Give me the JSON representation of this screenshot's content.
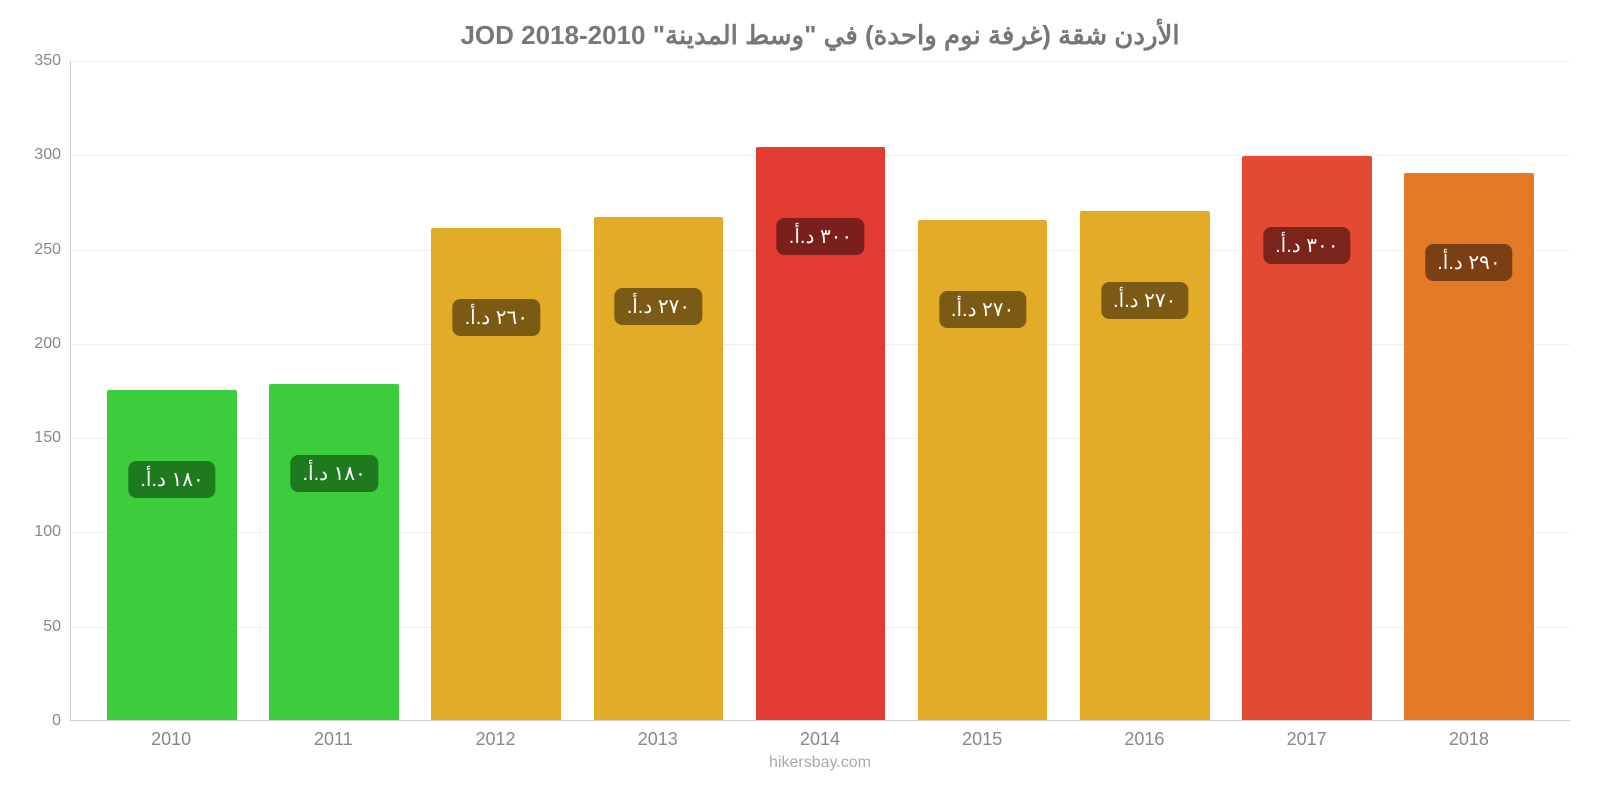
{
  "chart": {
    "type": "bar",
    "title": "الأردن شقة (غرفة نوم واحدة) في \"وسط المدينة\" JOD 2018-2010",
    "title_color": "#777777",
    "title_fontsize": 26,
    "attribution": "hikersbay.com",
    "background_color": "#ffffff",
    "grid_color": "#eeeeee",
    "axis_color": "#cccccc",
    "tick_font_color": "#888888",
    "tick_fontsize": 16,
    "xlabel_fontsize": 18,
    "bar_label_fontsize": 20,
    "bar_label_text_color": "#ffffff",
    "bar_width": 0.8,
    "ylim": [
      0,
      350
    ],
    "ytick_step": 50,
    "yticks": [
      0,
      50,
      100,
      150,
      200,
      250,
      300,
      350
    ],
    "categories": [
      "2010",
      "2011",
      "2012",
      "2013",
      "2014",
      "2015",
      "2016",
      "2017",
      "2018"
    ],
    "values": [
      175,
      178,
      261,
      267,
      304,
      265,
      270,
      299,
      290
    ],
    "bar_colors": [
      "#3ccc3c",
      "#3ccc3c",
      "#e2ac28",
      "#e2ac28",
      "#e23b32",
      "#e2ac28",
      "#e2ac28",
      "#e24a32",
      "#e27a28"
    ],
    "bar_value_labels": [
      "١٨٠ د.أ.‏",
      "١٨٠ د.أ.‏",
      "٢٦٠ د.أ.‏",
      "٢٧٠ د.أ.‏",
      "٣٠٠ د.أ.‏",
      "٢٧٠ د.أ.‏",
      "٢٧٠ د.أ.‏",
      "٣٠٠ د.أ.‏",
      "٢٩٠ د.أ.‏"
    ],
    "bar_label_bg_colors": [
      "#1f7a1f",
      "#1f7a1f",
      "#7a5a14",
      "#7a5a14",
      "#7a1f1c",
      "#7a5a14",
      "#7a5a14",
      "#7a241c",
      "#7a3f14"
    ],
    "bar_label_offset_from_top": 70
  }
}
